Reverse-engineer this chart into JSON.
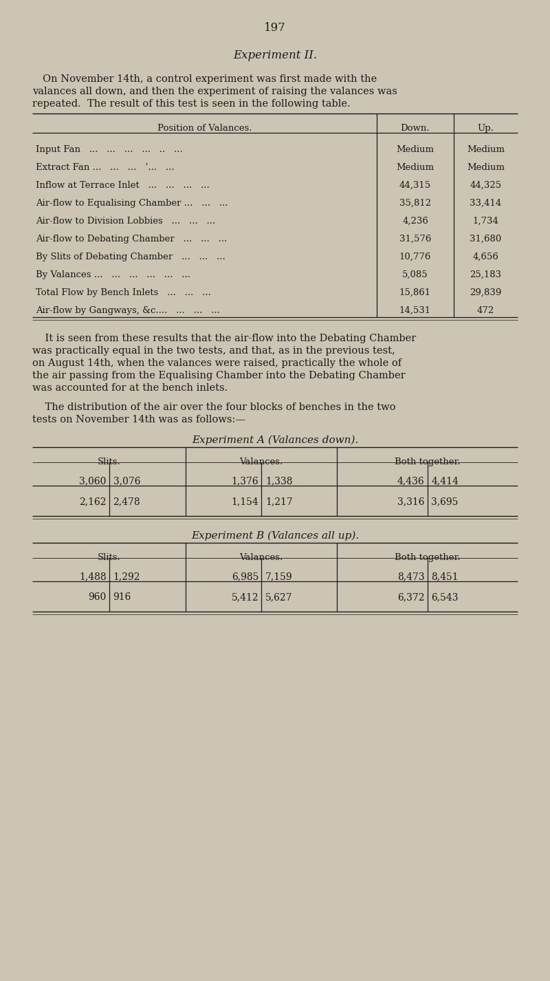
{
  "bg_color": "#cdc5b4",
  "text_color": "#1a1a1a",
  "page_number": "197",
  "title": "Experiment II.",
  "intro_text": [
    "On November 14th, a control experiment was first made with the",
    "valances all down, and then the experiment of raising the valances was",
    "repeated.  The result of this test is seen in the following table."
  ],
  "main_table": {
    "header_col": "Position of Valances.",
    "header_down": "Down.",
    "header_up": "Up.",
    "rows": [
      [
        "Input Fan   ...   ...   ...   ...   ..   ...",
        "Medium",
        "Medium"
      ],
      [
        "Extract Fan ...   ...   ...   ‘...   ...",
        "Medium",
        "Medium"
      ],
      [
        "Inflow at Terrace Inlet   ...   ...   ...   ...",
        "44,315",
        "44,325"
      ],
      [
        "Air-flow to Equalising Chamber ...   ...   ...",
        "35,812",
        "33,414"
      ],
      [
        "Air-flow to Division Lobbies   ...   ...   ...",
        "4,236",
        "1,734"
      ],
      [
        "Air-flow to Debating Chamber   ...   ...   ...",
        "31,576",
        "31,680"
      ],
      [
        "By Slits of Debating Chamber   ...   ...   ...",
        "10,776",
        "4,656"
      ],
      [
        "By Valances ...   ...   ...   ...   ...   ...",
        "5,085",
        "25,183"
      ],
      [
        "Total Flow by Bench Inlets   ...   ...   ...",
        "15,861",
        "29,839"
      ],
      [
        "Air-flow by Gangways, &c....   ...   ...   ...",
        "14,531",
        "472"
      ]
    ]
  },
  "middle_text": [
    "    It is seen from these results that the air-flow into the Debating Chamber",
    "was practically equal in the two tests, and that, as in the previous test,",
    "on August 14th, when the valances were raised, practically the whole of",
    "the air passing from the Equalising Chamber into the Debating Chamber",
    "was accounted for at the bench inlets."
  ],
  "middle_text2": [
    "    The distribution of the air over the four blocks of benches in the two",
    "tests on November 14th was as follows:—"
  ],
  "exp_a_title": "Experiment A (Valances down).",
  "exp_a": {
    "col_headers": [
      "Slits.",
      "Valances.",
      "Both together."
    ],
    "row1": [
      "3,060",
      "3,076",
      "1,376",
      "1,338",
      "4,436",
      "4,414"
    ],
    "row2": [
      "2,162",
      "2,478",
      "1,154",
      "1,217",
      "3,316",
      "3,695"
    ]
  },
  "exp_b_title": "Experiment B (Valances all up).",
  "exp_b": {
    "col_headers": [
      "Slits.",
      "Valances.",
      "Both together."
    ],
    "row1": [
      "1,488",
      "1,292",
      "6,985",
      "7,159",
      "8,473",
      "8,451"
    ],
    "row2": [
      "960",
      "916",
      "5,412",
      "5,627",
      "6,372",
      "6,543"
    ]
  }
}
